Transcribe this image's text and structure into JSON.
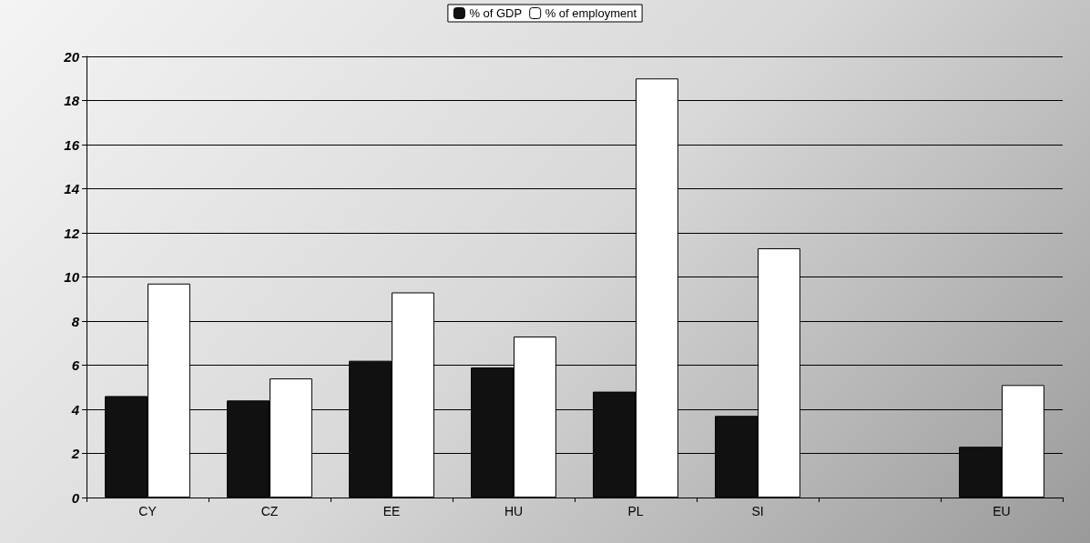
{
  "chart_data": {
    "type": "bar",
    "categories": [
      "CY",
      "CZ",
      "EE",
      "HU",
      "PL",
      "SI",
      null,
      "EU"
    ],
    "series": [
      {
        "name": "% of GDP",
        "color": "#111111",
        "values": [
          4.6,
          4.4,
          6.2,
          5.9,
          4.8,
          3.7,
          null,
          2.3
        ]
      },
      {
        "name": "% of employment",
        "color": "#ffffff",
        "values": [
          9.7,
          5.4,
          9.3,
          7.3,
          19.0,
          11.3,
          null,
          5.1
        ]
      }
    ],
    "ylim": [
      0,
      20
    ],
    "yticks": [
      0,
      2,
      4,
      6,
      8,
      10,
      12,
      14,
      16,
      18,
      20
    ],
    "grid": "y",
    "legend": "top"
  }
}
